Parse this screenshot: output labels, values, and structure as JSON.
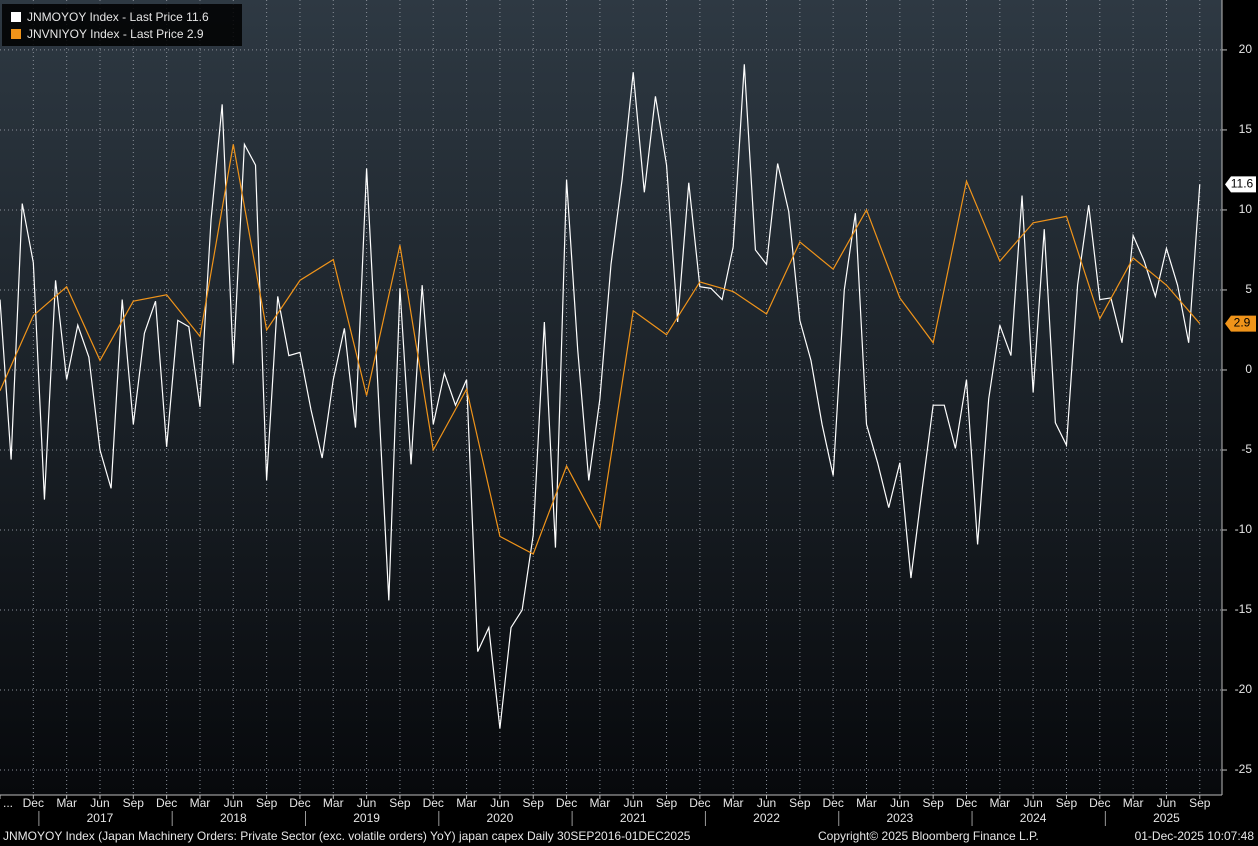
{
  "chart_data": {
    "type": "line",
    "series": [
      {
        "name": "JNMOYOY Index - Last Price 11.6",
        "color": "#ffffff",
        "x": [
          "2016-09",
          "2016-10",
          "2016-11",
          "2016-12",
          "2017-01",
          "2017-02",
          "2017-03",
          "2017-04",
          "2017-05",
          "2017-06",
          "2017-07",
          "2017-08",
          "2017-09",
          "2017-10",
          "2017-11",
          "2017-12",
          "2018-01",
          "2018-02",
          "2018-03",
          "2018-04",
          "2018-05",
          "2018-06",
          "2018-07",
          "2018-08",
          "2018-09",
          "2018-10",
          "2018-11",
          "2018-12",
          "2019-01",
          "2019-02",
          "2019-03",
          "2019-04",
          "2019-05",
          "2019-06",
          "2019-07",
          "2019-08",
          "2019-09",
          "2019-10",
          "2019-11",
          "2019-12",
          "2020-01",
          "2020-02",
          "2020-03",
          "2020-04",
          "2020-05",
          "2020-06",
          "2020-07",
          "2020-08",
          "2020-09",
          "2020-10",
          "2020-11",
          "2020-12",
          "2021-01",
          "2021-02",
          "2021-03",
          "2021-04",
          "2021-05",
          "2021-06",
          "2021-07",
          "2021-08",
          "2021-09",
          "2021-10",
          "2021-11",
          "2021-12",
          "2022-01",
          "2022-02",
          "2022-03",
          "2022-04",
          "2022-05",
          "2022-06",
          "2022-07",
          "2022-08",
          "2022-09",
          "2022-10",
          "2022-11",
          "2022-12",
          "2023-01",
          "2023-02",
          "2023-03",
          "2023-04",
          "2023-05",
          "2023-06",
          "2023-07",
          "2023-08",
          "2023-09",
          "2023-10",
          "2023-11",
          "2023-12",
          "2024-01",
          "2024-02",
          "2024-03",
          "2024-04",
          "2024-05",
          "2024-06",
          "2024-07",
          "2024-08",
          "2024-09",
          "2024-10",
          "2024-11",
          "2024-12",
          "2025-01",
          "2025-02",
          "2025-03",
          "2025-04",
          "2025-05",
          "2025-06",
          "2025-07",
          "2025-08",
          "2025-09"
        ],
        "values": [
          4.4,
          -5.6,
          10.4,
          6.7,
          -8.1,
          5.6,
          -0.6,
          2.8,
          0.8,
          -5.0,
          -7.4,
          4.4,
          -3.4,
          2.3,
          4.3,
          -4.8,
          3.1,
          2.7,
          -2.3,
          9.4,
          16.6,
          0.4,
          14.1,
          12.8,
          -6.9,
          4.6,
          0.9,
          1.1,
          -2.5,
          -5.5,
          -0.6,
          2.6,
          -3.6,
          12.6,
          -0.8,
          -14.4,
          5.1,
          -5.9,
          5.3,
          -3.4,
          -0.2,
          -2.2,
          -0.6,
          -17.6,
          -16.1,
          -22.4,
          -16.1,
          -15.0,
          -10.3,
          3.0,
          -11.1,
          11.9,
          1.3,
          -6.9,
          -1.8,
          6.6,
          11.9,
          18.6,
          11.1,
          17.1,
          12.8,
          3.0,
          11.7,
          5.2,
          5.1,
          4.4,
          7.7,
          19.1,
          7.5,
          6.6,
          12.9,
          9.9,
          3.1,
          0.6,
          -3.4,
          -6.6,
          5.0,
          9.8,
          -3.4,
          -5.8,
          -8.6,
          -5.8,
          -13.0,
          -7.5,
          -2.2,
          -2.2,
          -4.9,
          -0.6,
          -10.9,
          -1.8,
          2.8,
          0.9,
          10.9,
          -1.4,
          8.8,
          -3.3,
          -4.7,
          5.3,
          10.3,
          4.4,
          4.5,
          1.7,
          8.4,
          6.8,
          4.6,
          7.6,
          5.3,
          1.7,
          11.6
        ]
      },
      {
        "name": "JNVNIYOY Index - Last Price 2.9",
        "color": "#f0941a",
        "x": [
          "2016-09",
          "2016-12",
          "2017-03",
          "2017-06",
          "2017-09",
          "2017-12",
          "2018-03",
          "2018-06",
          "2018-09",
          "2018-12",
          "2019-03",
          "2019-06",
          "2019-09",
          "2019-12",
          "2020-03",
          "2020-06",
          "2020-09",
          "2020-12",
          "2021-03",
          "2021-06",
          "2021-09",
          "2021-12",
          "2022-03",
          "2022-06",
          "2022-09",
          "2022-12",
          "2023-03",
          "2023-06",
          "2023-09",
          "2023-12",
          "2024-03",
          "2024-06",
          "2024-09",
          "2024-12",
          "2025-03",
          "2025-06",
          "2025-09"
        ],
        "values": [
          -1.3,
          3.4,
          5.2,
          0.6,
          4.3,
          4.7,
          2.1,
          14.1,
          2.5,
          5.6,
          6.9,
          -1.6,
          7.8,
          -5.0,
          -1.2,
          -10.4,
          -11.5,
          -6.0,
          -9.9,
          3.7,
          2.2,
          5.5,
          4.9,
          3.5,
          8.0,
          6.3,
          10.0,
          4.5,
          1.7,
          11.8,
          6.8,
          9.2,
          9.6,
          3.2,
          7.0,
          5.3,
          2.9
        ]
      }
    ],
    "xlim": [
      "2016-09",
      "2025-11"
    ],
    "xticks": [
      {
        "value": "2016-09",
        "label": "..."
      },
      {
        "value": "2016-12",
        "label": "Dec"
      },
      {
        "value": "2017-03",
        "label": "Mar"
      },
      {
        "value": "2017-06",
        "label": "Jun"
      },
      {
        "value": "2017-09",
        "label": "Sep"
      },
      {
        "value": "2017-12",
        "label": "Dec"
      },
      {
        "value": "2018-03",
        "label": "Mar"
      },
      {
        "value": "2018-06",
        "label": "Jun"
      },
      {
        "value": "2018-09",
        "label": "Sep"
      },
      {
        "value": "2018-12",
        "label": "Dec"
      },
      {
        "value": "2019-03",
        "label": "Mar"
      },
      {
        "value": "2019-06",
        "label": "Jun"
      },
      {
        "value": "2019-09",
        "label": "Sep"
      },
      {
        "value": "2019-12",
        "label": "Dec"
      },
      {
        "value": "2020-03",
        "label": "Mar"
      },
      {
        "value": "2020-06",
        "label": "Jun"
      },
      {
        "value": "2020-09",
        "label": "Sep"
      },
      {
        "value": "2020-12",
        "label": "Dec"
      },
      {
        "value": "2021-03",
        "label": "Mar"
      },
      {
        "value": "2021-06",
        "label": "Jun"
      },
      {
        "value": "2021-09",
        "label": "Sep"
      },
      {
        "value": "2021-12",
        "label": "Dec"
      },
      {
        "value": "2022-03",
        "label": "Mar"
      },
      {
        "value": "2022-06",
        "label": "Jun"
      },
      {
        "value": "2022-09",
        "label": "Sep"
      },
      {
        "value": "2022-12",
        "label": "Dec"
      },
      {
        "value": "2023-03",
        "label": "Mar"
      },
      {
        "value": "2023-06",
        "label": "Jun"
      },
      {
        "value": "2023-09",
        "label": "Sep"
      },
      {
        "value": "2023-12",
        "label": "Dec"
      },
      {
        "value": "2024-03",
        "label": "Mar"
      },
      {
        "value": "2024-06",
        "label": "Jun"
      },
      {
        "value": "2024-09",
        "label": "Sep"
      },
      {
        "value": "2024-12",
        "label": "Dec"
      },
      {
        "value": "2025-03",
        "label": "Mar"
      },
      {
        "value": "2025-06",
        "label": "Jun"
      },
      {
        "value": "2025-09",
        "label": "Sep"
      }
    ],
    "year_labels": [
      {
        "value": "2017-06",
        "label": "2017"
      },
      {
        "value": "2018-06",
        "label": "2018"
      },
      {
        "value": "2019-06",
        "label": "2019"
      },
      {
        "value": "2020-06",
        "label": "2020"
      },
      {
        "value": "2021-06",
        "label": "2021"
      },
      {
        "value": "2022-06",
        "label": "2022"
      },
      {
        "value": "2023-06",
        "label": "2023"
      },
      {
        "value": "2024-06",
        "label": "2024"
      },
      {
        "value": "2025-06",
        "label": "2025"
      }
    ],
    "ylim": [
      -26.56,
      23.12
    ],
    "yticks": [
      20,
      15,
      10,
      5,
      0,
      -5,
      -10,
      -15,
      -20,
      -25
    ],
    "grid": true,
    "footer": [
      "JNMOYOY Index (Japan Machinery Orders: Private Sector (exc. volatile orders) YoY) japan capex Daily 30SEP2016-01DEC2025",
      "Copyright© 2025 Bloomberg Finance L.P.",
      "01-Dec-2025 10:07:48"
    ]
  }
}
